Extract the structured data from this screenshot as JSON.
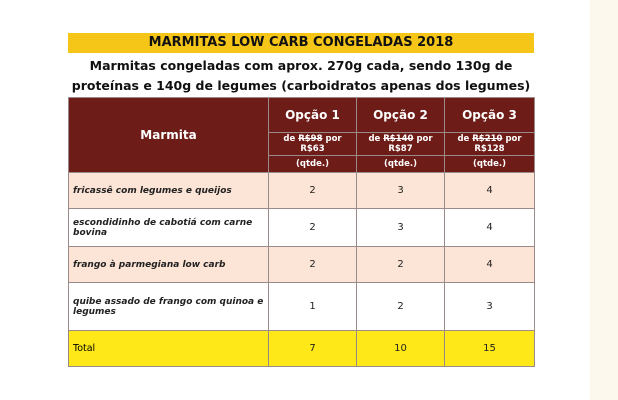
{
  "header": {
    "title": "MARMITAS LOW CARB CONGELADAS 2018",
    "subtitle": "Marmitas congeladas com aprox. 270g cada, sendo 130g de proteínas e 140g de legumes (carboidratos apenas dos legumes)"
  },
  "table": {
    "item_header": "Marmita",
    "options": [
      {
        "name": "Opção 1",
        "from": "de",
        "old": "R$98",
        "by": "por",
        "new": "R$63",
        "unit": "(qtde.)"
      },
      {
        "name": "Opção 2",
        "from": "de",
        "old": "R$140",
        "by": "por",
        "new": "R$87",
        "unit": "(qtde.)"
      },
      {
        "name": "Opção 3",
        "from": "de",
        "old": "R$210",
        "by": "por",
        "new": "R$128",
        "unit": "(qtde.)"
      }
    ],
    "rows": [
      [
        "fricassê com legumes e queijos",
        2,
        3,
        4
      ],
      [
        "escondidinho de cabotiá com carne bovina",
        2,
        3,
        4
      ],
      [
        "frango à parmegiana low carb",
        2,
        2,
        4
      ],
      [
        "quibe assado de frango com quinoa e legumes",
        1,
        2,
        3
      ]
    ],
    "total": [
      "Total",
      7,
      10,
      15
    ]
  }
}
